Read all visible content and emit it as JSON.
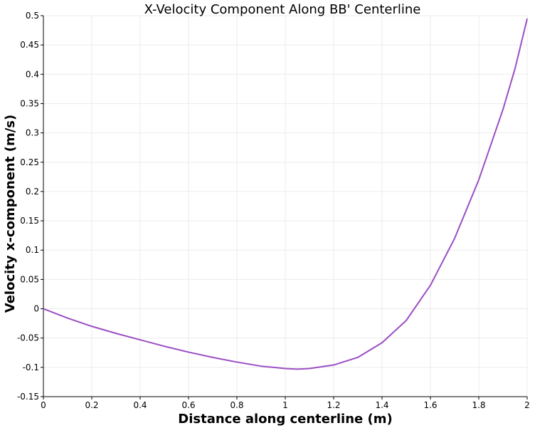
{
  "chart_data": {
    "type": "line",
    "title": "X-Velocity Component Along BB' Centerline",
    "xlabel": "Distance along centerline (m)",
    "ylabel": "Velocity x-component (m/s)",
    "xlim": [
      0,
      2
    ],
    "ylim": [
      -0.15,
      0.5
    ],
    "x_ticks": [
      "0",
      "0.2",
      "0.4",
      "0.6",
      "0.8",
      "1",
      "1.2",
      "1.4",
      "1.6",
      "1.8",
      "2"
    ],
    "y_ticks": [
      "-0.15",
      "-0.1",
      "-0.05",
      "0",
      "0.05",
      "0.1",
      "0.15",
      "0.2",
      "0.25",
      "0.3",
      "0.35",
      "0.4",
      "0.45",
      "0.5"
    ],
    "grid": true,
    "line_color": "#9b4fc4",
    "series": [
      {
        "x": [
          0,
          0.1,
          0.2,
          0.3,
          0.4,
          0.5,
          0.6,
          0.7,
          0.8,
          0.9,
          1.0,
          1.05,
          1.1,
          1.2,
          1.3,
          1.4,
          1.5,
          1.6,
          1.7,
          1.8,
          1.9,
          1.95,
          2.0
        ],
        "values": [
          0,
          -0.016,
          -0.03,
          -0.042,
          -0.053,
          -0.064,
          -0.074,
          -0.083,
          -0.091,
          -0.098,
          -0.102,
          -0.103,
          -0.102,
          -0.096,
          -0.083,
          -0.058,
          -0.02,
          0.04,
          0.12,
          0.22,
          0.34,
          0.41,
          0.495
        ]
      }
    ]
  }
}
